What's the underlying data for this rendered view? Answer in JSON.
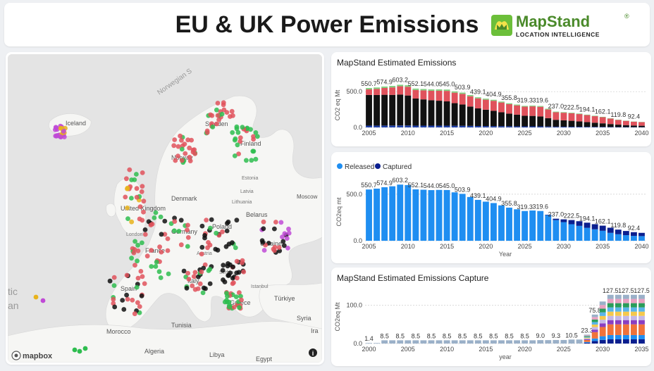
{
  "header": {
    "title": "EU & UK Power Emissions",
    "logo_name": "MapStand",
    "logo_reg": "®",
    "logo_sub": "LOCATION INTELLIGENCE"
  },
  "map": {
    "attribution": "mapbox",
    "info_glyph": "i",
    "labels": {
      "sea": "Norwegian S",
      "iceland": "Iceland",
      "sweden": "Sweden",
      "finland": "Finland",
      "norway": "Norway",
      "estonia": "Estonia",
      "latvia": "Latvia",
      "lithuania": "Lithuania",
      "denmark": "Denmark",
      "united_kingdom": "United Kingdom",
      "belarus": "Belarus",
      "moscow": "Moscow",
      "london": "London",
      "germany": "Germany",
      "poland": "Poland",
      "ukraine": "Ukraine",
      "france": "France",
      "austria": "Austria",
      "serbia": "Serbia",
      "italy": "Italy",
      "spain": "Spain",
      "istanbul": "Istanbul",
      "turkiye": "Türkiye",
      "greece": "Greece",
      "tunisia": "Tunisia",
      "morocco": "Morocco",
      "algeria": "Algeria",
      "libya": "Libya",
      "egypt": "Egypt",
      "syria": "Syria",
      "iraq": "Ira",
      "atlantic": "tic",
      "ocean": "an"
    },
    "colors": {
      "red": "#e0525c",
      "green": "#2ebd4f",
      "black": "#111111",
      "purple": "#c04ad6",
      "yellow": "#e8b31c",
      "grey": "#9a9a9a"
    }
  },
  "chart_data": [
    {
      "type": "bar",
      "title": "MapStand Estimated Emissions",
      "ylabel": "CO2 eq Mt",
      "ylim": [
        0,
        620
      ],
      "yticks": [
        "0.0",
        "500.0"
      ],
      "x": [
        2005,
        2006,
        2007,
        2008,
        2009,
        2010,
        2011,
        2012,
        2013,
        2014,
        2015,
        2016,
        2017,
        2018,
        2019,
        2020,
        2021,
        2022,
        2023,
        2024,
        2025,
        2026,
        2027,
        2028,
        2029,
        2030,
        2031,
        2032,
        2033,
        2034,
        2035,
        2036,
        2037,
        2038,
        2039,
        2040
      ],
      "xticks": [
        "2005",
        "2010",
        "2015",
        "2020",
        "2025",
        "2030",
        "2035",
        "2040"
      ],
      "totals": [
        550.7,
        560,
        574.9,
        585,
        603.2,
        598,
        552.1,
        548,
        544.0,
        546,
        545.0,
        520,
        503.9,
        470,
        439.1,
        420,
        404.9,
        380,
        355.8,
        338,
        319.3,
        325,
        319.6,
        280,
        237.0,
        230,
        222.5,
        210,
        194.1,
        178,
        162.1,
        140,
        119.8,
        105,
        92.4,
        85
      ],
      "data_labels": {
        "2005": "550.7",
        "2007": "574.9",
        "2009": "603.2",
        "2011": "552.1",
        "2013": "544.0",
        "2015": "545.0",
        "2017": "503.9",
        "2019": "439.1",
        "2021": "404.9",
        "2023": "355.8",
        "2025": "319.3",
        "2027": "319.6",
        "2029": "237.0",
        "2031": "222.5",
        "2033": "194.1",
        "2035": "162.1",
        "2037": "119.8",
        "2039": "92.4"
      },
      "colors": [
        "#1f3fa8",
        "#111111",
        "#e0525c",
        "#7fd07f"
      ]
    },
    {
      "type": "bar",
      "legend": [
        "Released",
        "Captured"
      ],
      "legend_colors": [
        "#1f8ef1",
        "#0b1f8f"
      ],
      "xlabel": "Year",
      "ylabel": "CO2eq mt",
      "ylim": [
        0,
        620
      ],
      "yticks": [
        "0.0",
        "500.0"
      ],
      "x": [
        2005,
        2006,
        2007,
        2008,
        2009,
        2010,
        2011,
        2012,
        2013,
        2014,
        2015,
        2016,
        2017,
        2018,
        2019,
        2020,
        2021,
        2022,
        2023,
        2024,
        2025,
        2026,
        2027,
        2028,
        2029,
        2030,
        2031,
        2032,
        2033,
        2034,
        2035,
        2036,
        2037,
        2038,
        2039,
        2040
      ],
      "xticks": [
        "2005",
        "2010",
        "2015",
        "2020",
        "2025",
        "2030",
        "2035",
        "2040"
      ],
      "totals": [
        550.7,
        560,
        574.9,
        585,
        603.2,
        598,
        552.1,
        548,
        544.0,
        546,
        545.0,
        520,
        503.9,
        470,
        439.1,
        420,
        404.9,
        380,
        355.8,
        338,
        319.3,
        325,
        319.6,
        280,
        237.0,
        230,
        222.5,
        210,
        194.1,
        178,
        162.1,
        140,
        119.8,
        105,
        92.4,
        85
      ],
      "captured": [
        0,
        0,
        0,
        0,
        0,
        0,
        0,
        0,
        0,
        0,
        0,
        0,
        0,
        0,
        0,
        0,
        0,
        0,
        0,
        0,
        0,
        0,
        0,
        5,
        15,
        30,
        45,
        50,
        55,
        55,
        55,
        55,
        50,
        45,
        40,
        35
      ],
      "data_labels": {
        "2005": "550.7",
        "2007": "574.9",
        "2009": "603.2",
        "2011": "552.1",
        "2013": "544.0",
        "2015": "545.0",
        "2017": "503.9",
        "2019": "439.1",
        "2021": "404.9",
        "2023": "355.8",
        "2025": "319.3",
        "2027": "319.6",
        "2029": "237.0",
        "2031": "222.5",
        "2033": "194.1",
        "2035": "162.1",
        "2037": "119.8",
        "2039": "92.4"
      }
    },
    {
      "type": "bar",
      "title": "MapStand Estimated Emissions Capture",
      "xlabel": "year",
      "ylabel": "CO2eq Mt",
      "ylim": [
        0,
        140
      ],
      "yticks": [
        "0.0",
        "100.0"
      ],
      "x": [
        2000,
        2001,
        2002,
        2003,
        2004,
        2005,
        2006,
        2007,
        2008,
        2009,
        2010,
        2011,
        2012,
        2013,
        2014,
        2015,
        2016,
        2017,
        2018,
        2019,
        2020,
        2021,
        2022,
        2023,
        2024,
        2025,
        2026,
        2027,
        2028,
        2029,
        2030,
        2031,
        2032,
        2033,
        2034,
        2035
      ],
      "xticks": [
        "2000",
        "2005",
        "2010",
        "2015",
        "2020",
        "2025",
        "2030",
        "2035"
      ],
      "totals": [
        1.4,
        1.4,
        8.5,
        8.5,
        8.5,
        8.5,
        8.5,
        8.5,
        8.5,
        8.5,
        8.5,
        8.5,
        8.5,
        8.5,
        8.5,
        8.5,
        8.5,
        8.5,
        8.5,
        8.5,
        8.5,
        8.5,
        9.0,
        9.0,
        9.3,
        9.3,
        10.5,
        10.5,
        23.3,
        75.8,
        110,
        127.5,
        127.5,
        127.5,
        127.5,
        127.5
      ],
      "data_labels": {
        "2000": "1.4",
        "2002": "8.5",
        "2004": "8.5",
        "2006": "8.5",
        "2008": "8.5",
        "2010": "8.5",
        "2012": "8.5",
        "2014": "8.5",
        "2016": "8.5",
        "2018": "8.5",
        "2020": "8.5",
        "2022": "9.0",
        "2024": "9.3",
        "2026": "10.5",
        "2028": "23.3",
        "2029": "75.8",
        "2031": "127.5",
        "2033": "127.5",
        "2035": "127.5"
      },
      "colors": [
        "#0b1f8f",
        "#1f8ef1",
        "#f0723a",
        "#8a3ec2",
        "#c4b7e8",
        "#f5c84c",
        "#5ab5e8",
        "#2a9d5a",
        "#e8a0c0",
        "#9ab0c8"
      ]
    }
  ]
}
